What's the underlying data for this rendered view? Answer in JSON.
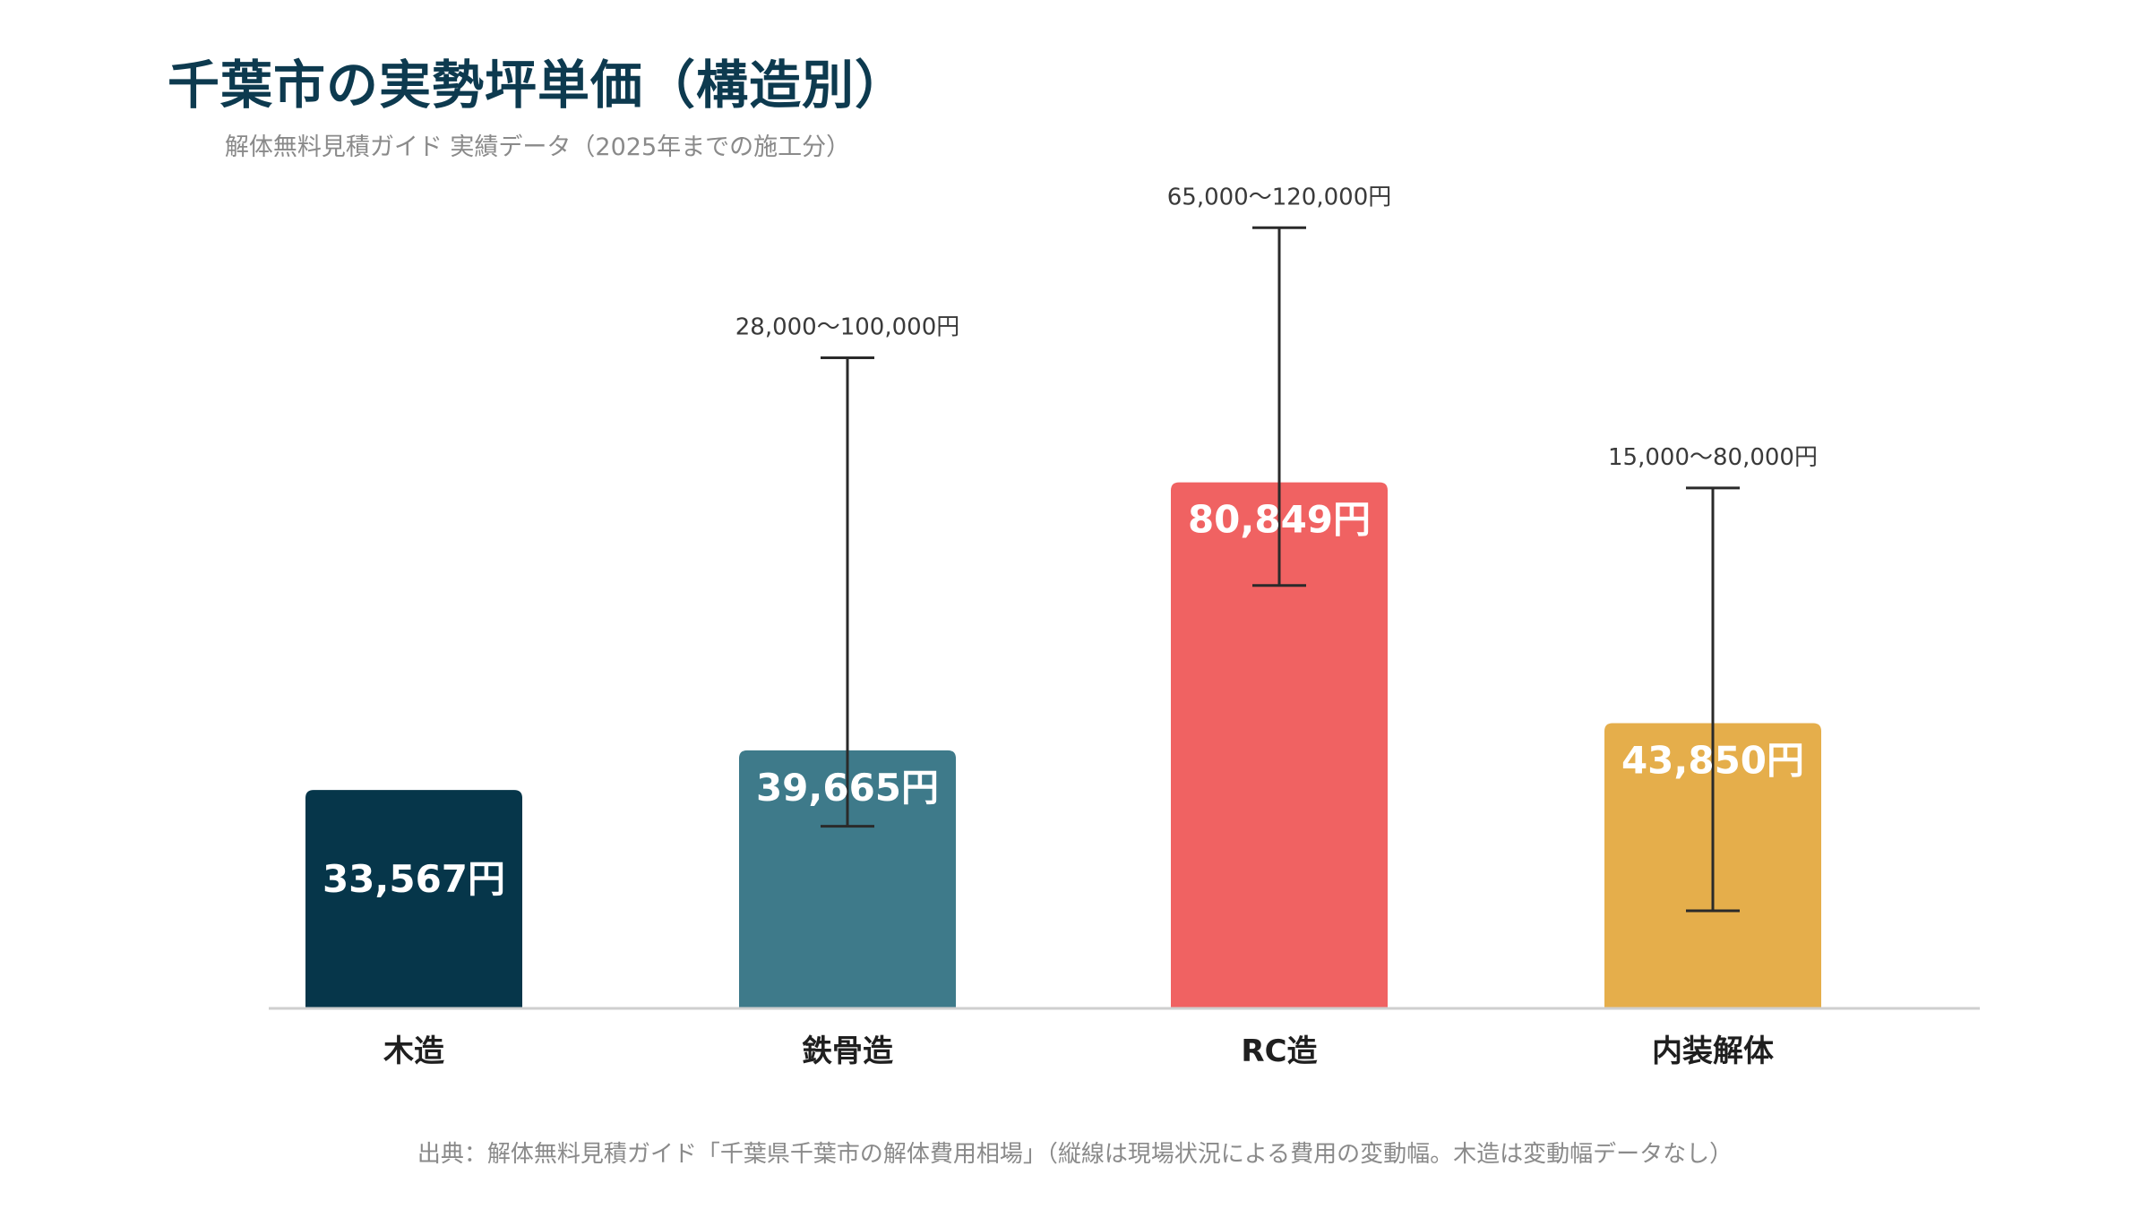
{
  "title": "千葉市の実勢坪単価（構造別）",
  "subtitle": "解体無料見積ガイド 実績データ（2025年までの施工分）",
  "source": "出典：解体無料見積ガイド「千葉県千葉市の解体費用相場」（縦線は現場状況による費用の変動幅。木造は変動幅データなし）",
  "chart_data": {
    "type": "bar",
    "title": "千葉市の実勢坪単価（構造別）",
    "subtitle": "解体無料見積ガイド 実績データ（2025年までの施工分）",
    "unit": "円",
    "categories": [
      "木造",
      "鉄骨造",
      "RC造",
      "内装解体"
    ],
    "values": [
      33567,
      39665,
      80849,
      43850
    ],
    "value_labels": [
      "33,567円",
      "39,665円",
      "80,849円",
      "43,850円"
    ],
    "ranges": [
      null,
      {
        "low": 28000,
        "high": 100000,
        "label": "28,000〜100,000円"
      },
      {
        "low": 65000,
        "high": 120000,
        "label": "65,000〜120,000円"
      },
      {
        "low": 15000,
        "high": 80000,
        "label": "15,000〜80,000円"
      }
    ],
    "colors": [
      "#06364a",
      "#3e7a8a",
      "#f06262",
      "#e5ae4b"
    ],
    "error_bar_color": "#2a2a2a",
    "baseline_color": "#cfcfcf",
    "ylim": [
      0,
      155000
    ],
    "grid": false,
    "legend": "none"
  }
}
